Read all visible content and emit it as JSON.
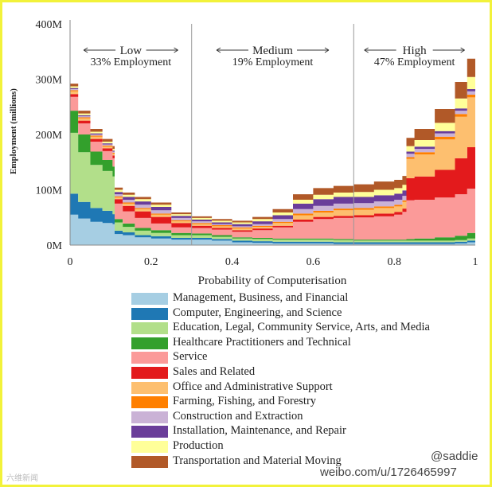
{
  "chart_data": {
    "type": "area",
    "stacked": true,
    "xlabel": "Probability of Computerisation",
    "ylabel": "Employment (millions)",
    "xlim": [
      0,
      1
    ],
    "ylim": [
      0,
      400
    ],
    "x_ticks": [
      "0",
      "0.2",
      "0.4",
      "0.6",
      "0.8",
      "1"
    ],
    "y_ticks": [
      "0M",
      "100M",
      "200M",
      "300M",
      "400M"
    ],
    "thresholds": [
      0.3,
      0.7
    ],
    "regions": [
      {
        "name": "Low",
        "share": "33% Employment",
        "range": [
          0,
          0.3
        ]
      },
      {
        "name": "Medium",
        "share": "19% Employment",
        "range": [
          0.3,
          0.7
        ]
      },
      {
        "name": "High",
        "share": "47% Employment",
        "range": [
          0.7,
          1
        ]
      }
    ],
    "x": [
      0,
      0.02,
      0.05,
      0.08,
      0.105,
      0.11,
      0.13,
      0.16,
      0.2,
      0.25,
      0.3,
      0.35,
      0.4,
      0.45,
      0.5,
      0.55,
      0.6,
      0.65,
      0.7,
      0.75,
      0.8,
      0.82,
      0.83,
      0.85,
      0.9,
      0.95,
      0.98,
      1.0
    ],
    "series": [
      {
        "name": "Management, Business, and Financial",
        "color": "#a6cee3",
        "values": [
          55,
          48,
          42,
          40,
          38,
          20,
          18,
          14,
          12,
          10,
          10,
          8,
          5,
          4,
          3,
          3,
          3,
          2,
          2,
          2,
          2,
          2,
          2,
          2,
          2,
          3,
          5,
          8
        ]
      },
      {
        "name": "Computer, Engineering, and Science",
        "color": "#1f78b4",
        "values": [
          38,
          30,
          25,
          22,
          18,
          6,
          5,
          4,
          4,
          3,
          3,
          3,
          3,
          3,
          3,
          3,
          3,
          3,
          3,
          3,
          3,
          3,
          3,
          3,
          3,
          3,
          3,
          3
        ]
      },
      {
        "name": "Education, Legal, Community Service, Arts, and Media",
        "color": "#b2df8a",
        "values": [
          110,
          90,
          78,
          72,
          68,
          15,
          10,
          8,
          6,
          5,
          5,
          4,
          4,
          4,
          4,
          4,
          4,
          4,
          3,
          3,
          3,
          3,
          3,
          3,
          3,
          3,
          4,
          5
        ]
      },
      {
        "name": "Healthcare Practitioners and Technical",
        "color": "#33a02c",
        "values": [
          40,
          32,
          24,
          20,
          18,
          6,
          6,
          5,
          5,
          4,
          3,
          3,
          2,
          2,
          2,
          2,
          2,
          2,
          2,
          2,
          2,
          2,
          3,
          4,
          6,
          8,
          10,
          12
        ]
      },
      {
        "name": "Service",
        "color": "#fb9a99",
        "values": [
          25,
          20,
          18,
          16,
          15,
          28,
          22,
          18,
          12,
          10,
          10,
          10,
          10,
          14,
          20,
          30,
          35,
          38,
          40,
          42,
          45,
          50,
          70,
          70,
          72,
          75,
          80,
          90
        ]
      },
      {
        "name": "Sales and Related",
        "color": "#e31a1c",
        "values": [
          5,
          5,
          5,
          5,
          5,
          8,
          10,
          12,
          12,
          8,
          4,
          3,
          3,
          3,
          3,
          4,
          4,
          4,
          4,
          5,
          5,
          6,
          40,
          42,
          50,
          65,
          75,
          95
        ]
      },
      {
        "name": "Office and Administrative Support",
        "color": "#fdbf6f",
        "values": [
          5,
          4,
          4,
          3,
          3,
          3,
          4,
          4,
          4,
          3,
          3,
          3,
          3,
          3,
          5,
          8,
          8,
          10,
          10,
          10,
          10,
          12,
          35,
          40,
          55,
          75,
          90,
          120
        ]
      },
      {
        "name": "Farming, Fishing, and Forestry",
        "color": "#ff7f00",
        "values": [
          2,
          2,
          2,
          2,
          2,
          2,
          2,
          2,
          2,
          2,
          2,
          2,
          2,
          2,
          2,
          3,
          3,
          3,
          3,
          3,
          3,
          3,
          3,
          4,
          5,
          5,
          5,
          5
        ]
      },
      {
        "name": "Construction and Extraction",
        "color": "#cab2d6",
        "values": [
          2,
          2,
          2,
          2,
          2,
          4,
          5,
          6,
          6,
          4,
          3,
          2,
          2,
          3,
          5,
          8,
          9,
          9,
          9,
          9,
          9,
          8,
          6,
          6,
          6,
          6,
          6,
          6
        ]
      },
      {
        "name": "Installation, Maintenance, and Repair",
        "color": "#6a3d9a",
        "values": [
          2,
          2,
          2,
          2,
          2,
          4,
          5,
          6,
          6,
          4,
          3,
          3,
          4,
          5,
          7,
          10,
          12,
          12,
          11,
          11,
          11,
          10,
          4,
          4,
          4,
          4,
          4,
          4
        ]
      },
      {
        "name": "Production",
        "color": "#ffff99",
        "values": [
          3,
          3,
          3,
          3,
          3,
          4,
          4,
          4,
          4,
          3,
          3,
          3,
          3,
          4,
          5,
          7,
          8,
          8,
          9,
          10,
          10,
          10,
          10,
          12,
          15,
          18,
          22,
          25
        ]
      },
      {
        "name": "Transportation and Material Moving",
        "color": "#b15928",
        "values": [
          5,
          5,
          5,
          5,
          5,
          4,
          4,
          4,
          4,
          3,
          3,
          3,
          3,
          4,
          6,
          10,
          12,
          12,
          14,
          15,
          15,
          16,
          15,
          20,
          25,
          30,
          33,
          25
        ]
      }
    ]
  },
  "watermark": {
    "weibo_handle": "@saddie",
    "weibo_url": "weibo.com/u/1726465997",
    "corner": "六维新闻"
  }
}
